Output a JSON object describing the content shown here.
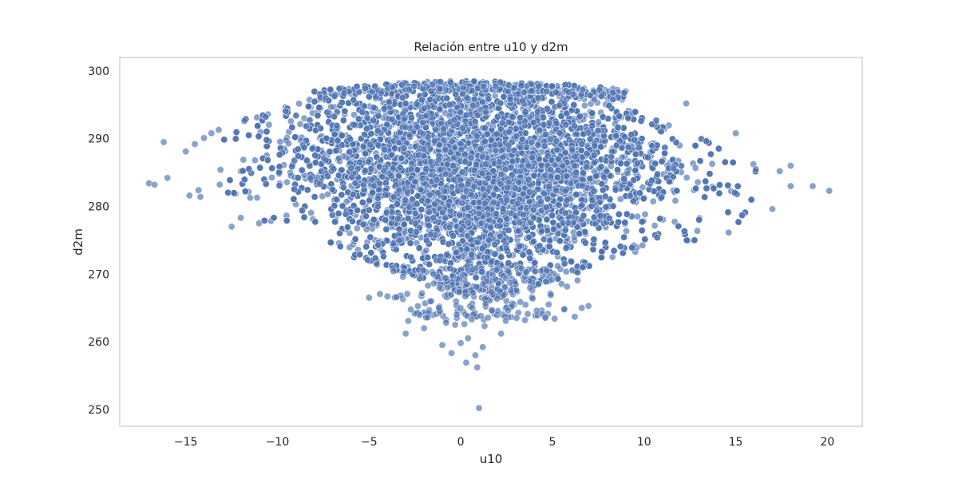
{
  "chart_data": {
    "type": "scatter",
    "title": "Relación entre u10 y d2m",
    "xlabel": "u10",
    "ylabel": "d2m",
    "xlim": [
      -18.6,
      21.9
    ],
    "ylim": [
      247.5,
      302.0
    ],
    "xticks": [
      -15,
      -10,
      -5,
      0,
      5,
      10,
      15,
      20
    ],
    "xtick_labels": [
      "−15",
      "−10",
      "−5",
      "0",
      "5",
      "10",
      "15",
      "20"
    ],
    "yticks": [
      250,
      260,
      270,
      280,
      290,
      300
    ],
    "ytick_labels": [
      "250",
      "260",
      "270",
      "280",
      "290",
      "300"
    ],
    "grid": false,
    "legend": "none",
    "point_color": "#4c72b0",
    "point_edge_color": "#ffffff",
    "point_alpha": 0.65,
    "cloud": {
      "approx_point_count": 30000,
      "u10_range": [
        -13.5,
        18.0
      ],
      "d2m_range": [
        262.0,
        299.0
      ],
      "dense_core_center": {
        "u10": 1.0,
        "d2m": 284.0
      }
    },
    "points": [
      {
        "x": -17.0,
        "y": 283.4
      },
      {
        "x": -16.7,
        "y": 283.2
      },
      {
        "x": -16.2,
        "y": 289.5
      },
      {
        "x": -16.0,
        "y": 284.2
      },
      {
        "x": -15.0,
        "y": 288.1
      },
      {
        "x": -14.8,
        "y": 281.6
      },
      {
        "x": -14.5,
        "y": 289.2
      },
      {
        "x": -14.3,
        "y": 282.4
      },
      {
        "x": -14.2,
        "y": 281.4
      },
      {
        "x": -14.0,
        "y": 290.1
      },
      {
        "x": -13.6,
        "y": 290.8
      },
      {
        "x": -13.2,
        "y": 291.3
      },
      {
        "x": -12.5,
        "y": 277.0
      },
      {
        "x": -12.0,
        "y": 278.3
      },
      {
        "x": -11.8,
        "y": 292.6
      },
      {
        "x": -11.0,
        "y": 277.5
      },
      {
        "x": -5.0,
        "y": 266.5
      },
      {
        "x": -4.0,
        "y": 266.7
      },
      {
        "x": -3.5,
        "y": 266.6
      },
      {
        "x": -3.0,
        "y": 261.2
      },
      {
        "x": -2.0,
        "y": 262.0
      },
      {
        "x": -1.8,
        "y": 263.6
      },
      {
        "x": -1.2,
        "y": 265.0
      },
      {
        "x": -1.0,
        "y": 259.5
      },
      {
        "x": -0.8,
        "y": 262.8
      },
      {
        "x": -0.5,
        "y": 258.3
      },
      {
        "x": -0.3,
        "y": 262.5
      },
      {
        "x": 0.0,
        "y": 259.8
      },
      {
        "x": 0.2,
        "y": 262.6
      },
      {
        "x": 0.4,
        "y": 260.5
      },
      {
        "x": 0.3,
        "y": 256.9
      },
      {
        "x": 0.6,
        "y": 263.3
      },
      {
        "x": 0.8,
        "y": 258.0
      },
      {
        "x": 0.9,
        "y": 256.2
      },
      {
        "x": 1.0,
        "y": 250.2
      },
      {
        "x": 1.1,
        "y": 263.8
      },
      {
        "x": 1.2,
        "y": 259.2
      },
      {
        "x": 1.3,
        "y": 262.3
      },
      {
        "x": 1.7,
        "y": 264.6
      },
      {
        "x": 2.2,
        "y": 261.2
      },
      {
        "x": 4.8,
        "y": 265.5
      },
      {
        "x": 6.6,
        "y": 265.0
      },
      {
        "x": 17.0,
        "y": 279.6
      },
      {
        "x": 18.0,
        "y": 283.0
      },
      {
        "x": 18.0,
        "y": 286.0
      },
      {
        "x": 19.2,
        "y": 283.0
      },
      {
        "x": 20.1,
        "y": 282.3
      },
      {
        "x": 12.3,
        "y": 295.2
      },
      {
        "x": 15.0,
        "y": 290.8
      },
      {
        "x": 16.1,
        "y": 285.5
      },
      {
        "x": 17.4,
        "y": 285.2
      }
    ]
  }
}
